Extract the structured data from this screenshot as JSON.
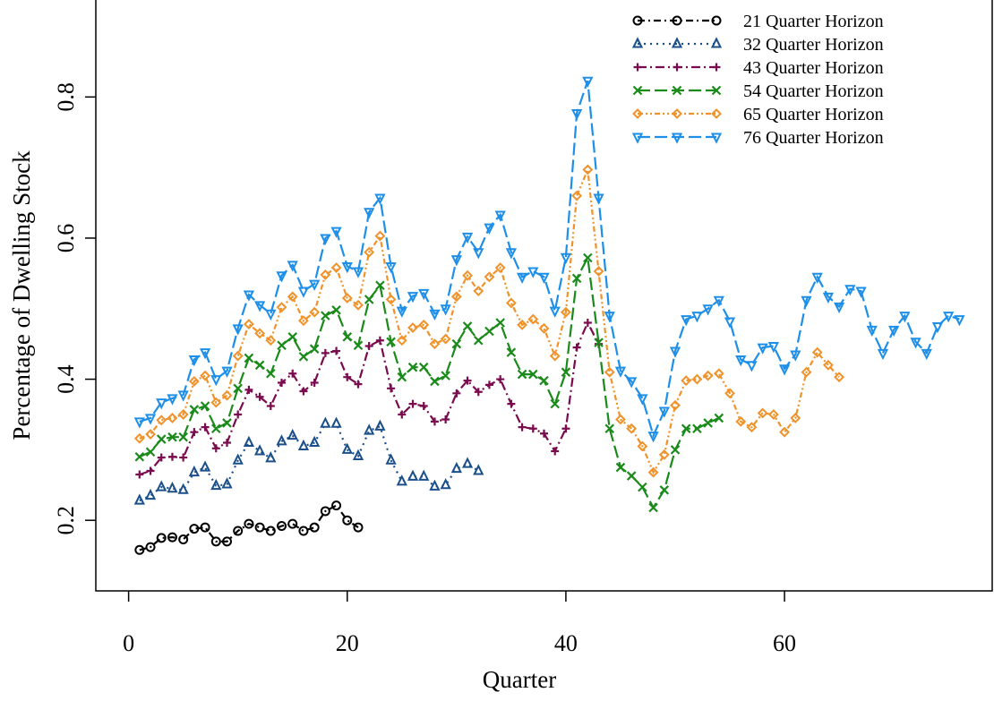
{
  "chart_data": {
    "type": "line",
    "title": "",
    "xlabel": "Quarter",
    "ylabel": "Percentage of Dwelling Stock",
    "xlim": [
      -3,
      79
    ],
    "ylim": [
      0.1,
      0.94
    ],
    "xticks": [
      0,
      20,
      40,
      60
    ],
    "yticks": [
      0.2,
      0.4,
      0.6,
      0.8
    ],
    "x_tick_labels": [
      "0",
      "20",
      "40",
      "60"
    ],
    "y_tick_labels": [
      "0.2",
      "0.4",
      "0.6",
      "0.8"
    ],
    "grid": false,
    "legend_position": "top-right",
    "series": [
      {
        "name": "21 Quarter Horizon",
        "color": "#000000",
        "marker": "circle",
        "dash": "8,4,2,4",
        "values": [
          0.158,
          0.162,
          0.175,
          0.176,
          0.173,
          0.188,
          0.19,
          0.17,
          0.17,
          0.185,
          0.195,
          0.19,
          0.185,
          0.192,
          0.195,
          0.185,
          0.19,
          0.213,
          0.221,
          0.2,
          0.19
        ]
      },
      {
        "name": "32 Quarter Horizon",
        "color": "#1b4f8a",
        "marker": "triangle-up",
        "dash": "2,5",
        "values": [
          0.228,
          0.235,
          0.247,
          0.245,
          0.243,
          0.268,
          0.275,
          0.249,
          0.251,
          0.285,
          0.31,
          0.298,
          0.288,
          0.312,
          0.32,
          0.305,
          0.31,
          0.337,
          0.337,
          0.3,
          0.291,
          0.327,
          0.333,
          0.285,
          0.255,
          0.262,
          0.262,
          0.248,
          0.25,
          0.273,
          0.28,
          0.27
        ]
      },
      {
        "name": "43 Quarter Horizon",
        "color": "#7a0b4e",
        "marker": "plus",
        "dash": "10,4,2,4",
        "values": [
          0.265,
          0.27,
          0.289,
          0.29,
          0.289,
          0.325,
          0.332,
          0.302,
          0.31,
          0.35,
          0.385,
          0.375,
          0.362,
          0.395,
          0.408,
          0.383,
          0.395,
          0.437,
          0.44,
          0.403,
          0.393,
          0.447,
          0.455,
          0.387,
          0.35,
          0.365,
          0.362,
          0.34,
          0.343,
          0.38,
          0.398,
          0.382,
          0.392,
          0.4,
          0.365,
          0.332,
          0.33,
          0.323,
          0.298,
          0.33,
          0.445,
          0.48,
          0.45
        ]
      },
      {
        "name": "54 Quarter Horizon",
        "color": "#1a8a1a",
        "marker": "x",
        "dash": "14,5",
        "values": [
          0.29,
          0.297,
          0.315,
          0.318,
          0.318,
          0.357,
          0.362,
          0.33,
          0.338,
          0.387,
          0.43,
          0.42,
          0.408,
          0.448,
          0.46,
          0.432,
          0.443,
          0.49,
          0.498,
          0.46,
          0.448,
          0.513,
          0.533,
          0.453,
          0.403,
          0.417,
          0.417,
          0.397,
          0.405,
          0.45,
          0.475,
          0.455,
          0.468,
          0.48,
          0.438,
          0.407,
          0.407,
          0.398,
          0.365,
          0.41,
          0.543,
          0.572,
          0.452,
          0.33,
          0.275,
          0.263,
          0.247,
          0.218,
          0.243,
          0.3,
          0.33,
          0.33,
          0.338,
          0.345
        ]
      },
      {
        "name": "65 Quarter Horizon",
        "color": "#f0922a",
        "marker": "diamond",
        "dash": "6,3,2,3,2,3",
        "values": [
          0.316,
          0.322,
          0.342,
          0.345,
          0.35,
          0.397,
          0.405,
          0.367,
          0.377,
          0.433,
          0.478,
          0.465,
          0.455,
          0.502,
          0.517,
          0.483,
          0.495,
          0.548,
          0.558,
          0.515,
          0.505,
          0.58,
          0.603,
          0.513,
          0.455,
          0.473,
          0.477,
          0.45,
          0.457,
          0.517,
          0.547,
          0.525,
          0.545,
          0.558,
          0.508,
          0.477,
          0.485,
          0.472,
          0.433,
          0.495,
          0.66,
          0.697,
          0.553,
          0.41,
          0.343,
          0.33,
          0.305,
          0.268,
          0.293,
          0.363,
          0.398,
          0.4,
          0.405,
          0.408,
          0.38,
          0.34,
          0.332,
          0.352,
          0.35,
          0.325,
          0.345,
          0.41,
          0.438,
          0.42,
          0.403
        ]
      },
      {
        "name": "76 Quarter Horizon",
        "color": "#1e8fe8",
        "marker": "triangle-down",
        "dash": "14,5",
        "values": [
          0.34,
          0.345,
          0.367,
          0.373,
          0.378,
          0.428,
          0.438,
          0.4,
          0.412,
          0.472,
          0.52,
          0.505,
          0.493,
          0.547,
          0.562,
          0.525,
          0.535,
          0.6,
          0.61,
          0.56,
          0.553,
          0.637,
          0.657,
          0.56,
          0.497,
          0.518,
          0.522,
          0.493,
          0.5,
          0.57,
          0.602,
          0.58,
          0.615,
          0.633,
          0.58,
          0.545,
          0.553,
          0.545,
          0.497,
          0.573,
          0.777,
          0.823,
          0.657,
          0.49,
          0.412,
          0.397,
          0.373,
          0.32,
          0.355,
          0.44,
          0.485,
          0.49,
          0.5,
          0.512,
          0.482,
          0.428,
          0.42,
          0.445,
          0.447,
          0.415,
          0.435,
          0.512,
          0.545,
          0.517,
          0.503,
          0.528,
          0.525,
          0.47,
          0.437,
          0.47,
          0.49,
          0.453,
          0.437,
          0.475,
          0.49,
          0.485
        ]
      }
    ]
  }
}
